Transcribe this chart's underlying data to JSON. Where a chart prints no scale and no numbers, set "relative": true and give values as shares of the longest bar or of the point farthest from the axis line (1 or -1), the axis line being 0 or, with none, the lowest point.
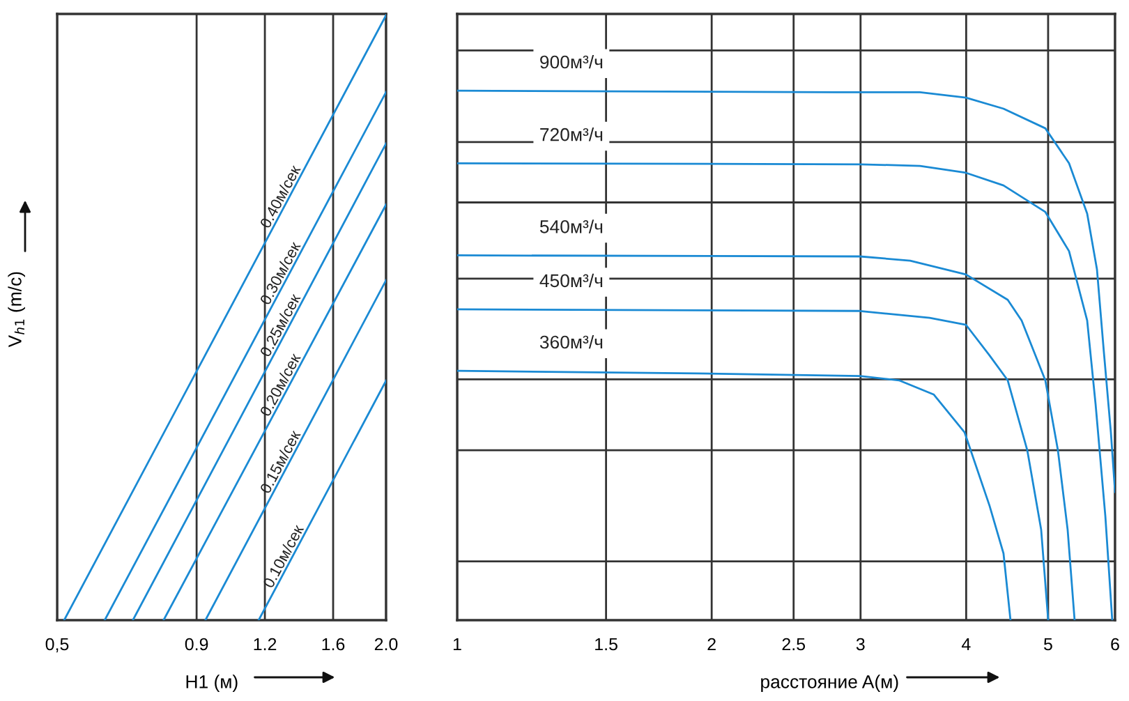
{
  "chart_data": [
    {
      "type": "line",
      "xlabel": "H1 (м)",
      "ylabel": "V$_{h1}$ (m/c)",
      "log": "x",
      "relative": true,
      "xlim": [
        0.5,
        2.0
      ],
      "xticks": [
        {
          "value": 0.5,
          "label": "0,5"
        },
        0.9,
        1.2,
        1.6,
        {
          "value": 2.0,
          "label": "2.0"
        }
      ],
      "grid": "x",
      "legend": false,
      "series": [
        {
          "name": "0.40м/сек",
          "color": "#1a8ad4",
          "x": [
            0.515,
            2.0
          ],
          "values": [
            0,
            1.0
          ]
        },
        {
          "name": "0.30м/сек",
          "color": "#1a8ad4",
          "x": [
            0.611,
            2.0
          ],
          "values": [
            0,
            0.873
          ]
        },
        {
          "name": "0.25м/сек",
          "color": "#1a8ad4",
          "x": [
            0.688,
            2.0
          ],
          "values": [
            0,
            0.788
          ]
        },
        {
          "name": "0.20м/сек",
          "color": "#1a8ad4",
          "x": [
            0.783,
            2.0
          ],
          "values": [
            0,
            0.687
          ]
        },
        {
          "name": "0.15м/сек",
          "color": "#1a8ad4",
          "x": [
            0.934,
            2.0
          ],
          "values": [
            0,
            0.562
          ]
        },
        {
          "name": "0.10м/сек",
          "color": "#1a8ad4",
          "x": [
            1.169,
            2.0
          ],
          "values": [
            0,
            0.396
          ]
        }
      ]
    },
    {
      "type": "line",
      "xlabel": "расстояние A(м)",
      "log": "x",
      "relative": true,
      "xlim": [
        1,
        6
      ],
      "xticks": [
        1,
        1.5,
        2,
        2.5,
        3,
        4,
        5,
        6
      ],
      "grid": "x",
      "legend": false,
      "ref_lines": [
        {
          "axis": "y",
          "value": 1.076
        },
        {
          "axis": "y",
          "value": 0.903
        },
        {
          "axis": "y",
          "value": 0.789
        },
        {
          "axis": "y",
          "value": 0.645
        },
        {
          "axis": "y",
          "value": 0.455
        },
        {
          "axis": "y",
          "value": 0.321
        },
        {
          "axis": "y",
          "value": 0.111
        }
      ],
      "series": [
        {
          "name": "900м³/ч",
          "color": "#1a8ad4",
          "x": [
            1,
            2.808,
            3.527,
            3.997,
            4.428,
            4.962,
            5.293,
            5.561,
            5.711,
            5.821,
            5.932,
            6.0
          ],
          "values": [
            1.0,
            0.997,
            0.997,
            0.987,
            0.966,
            0.929,
            0.863,
            0.768,
            0.663,
            0.505,
            0.355,
            0.242
          ]
        },
        {
          "name": "720м³/ч",
          "color": "#1a8ad4",
          "x": [
            1,
            3.0,
            3.527,
            3.997,
            4.428,
            4.962,
            5.293,
            5.561,
            5.69,
            5.843,
            5.954
          ],
          "values": [
            0.863,
            0.861,
            0.858,
            0.845,
            0.821,
            0.771,
            0.697,
            0.566,
            0.408,
            0.197,
            0
          ]
        },
        {
          "name": "540м³/ч",
          "color": "#1a8ad4",
          "x": [
            1,
            2.995,
            3.434,
            3.997,
            4.479,
            4.652,
            4.962,
            5.135,
            5.273,
            5.374
          ],
          "values": [
            0.689,
            0.687,
            0.679,
            0.653,
            0.605,
            0.566,
            0.453,
            0.321,
            0.171,
            0
          ]
        },
        {
          "name": "450м³/ч",
          "color": "#1a8ad4",
          "x": [
            1,
            2.995,
            3.621,
            3.997,
            4.263,
            4.479,
            4.724,
            4.906,
            5.001
          ],
          "values": [
            0.587,
            0.584,
            0.571,
            0.558,
            0.5,
            0.453,
            0.321,
            0.171,
            0
          ]
        },
        {
          "name": "360м³/ч",
          "color": "#1a8ad4",
          "x": [
            1,
            1.921,
            2.995,
            3.331,
            3.663,
            3.982,
            4.263,
            4.428,
            4.513
          ],
          "values": [
            0.471,
            0.466,
            0.461,
            0.453,
            0.426,
            0.355,
            0.216,
            0.126,
            0
          ]
        }
      ]
    }
  ]
}
